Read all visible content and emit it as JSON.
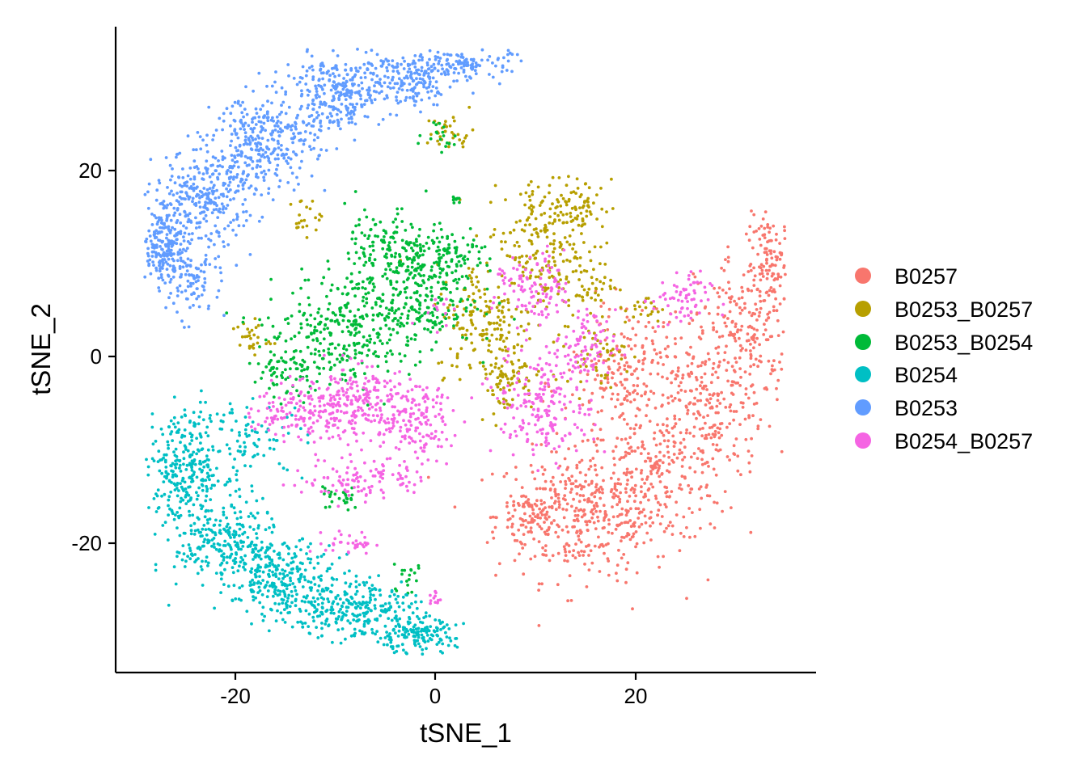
{
  "chart_data": {
    "type": "scatter",
    "xlabel": "tSNE_1",
    "ylabel": "tSNE_2",
    "xlim": [
      -32,
      38
    ],
    "ylim": [
      -34,
      35
    ],
    "x_ticks": [
      -20,
      0,
      20
    ],
    "y_ticks": [
      20,
      0,
      -20
    ],
    "x_tick_labels": [
      "-20",
      "0",
      "20"
    ],
    "y_tick_labels": [
      "20",
      "0",
      "-20"
    ],
    "legend": {
      "position": "right"
    },
    "grid": false,
    "series": [
      {
        "name": "B0257",
        "color": "#F8766D",
        "count": 1400,
        "regions": [
          {
            "cx": 15,
            "cy": -17,
            "sx": 4.5,
            "sy": 3.5,
            "w": 0.28
          },
          {
            "cx": 22,
            "cy": -13,
            "sx": 4,
            "sy": 3.5,
            "w": 0.16
          },
          {
            "cx": 27,
            "cy": -5,
            "sx": 3,
            "sy": 4,
            "w": 0.14
          },
          {
            "cx": 31,
            "cy": 3,
            "sx": 2.5,
            "sy": 4,
            "w": 0.14
          },
          {
            "cx": 33.5,
            "cy": 10,
            "sx": 1.2,
            "sy": 2.5,
            "w": 0.08
          },
          {
            "cx": 20,
            "cy": -3,
            "sx": 3.5,
            "sy": 3,
            "w": 0.12
          },
          {
            "cx": 9.5,
            "cy": -17,
            "sx": 1.5,
            "sy": 1.5,
            "w": 0.05
          },
          {
            "cx": 19,
            "cy": 2,
            "sx": 2,
            "sy": 2,
            "w": 0.03
          }
        ]
      },
      {
        "name": "B0253_B0257",
        "color": "#B79F00",
        "count": 700,
        "regions": [
          {
            "cx": 10,
            "cy": 13,
            "sx": 2.5,
            "sy": 3,
            "w": 0.22
          },
          {
            "cx": 14,
            "cy": 16,
            "sx": 1.8,
            "sy": 1.5,
            "w": 0.1
          },
          {
            "cx": 14,
            "cy": 8,
            "sx": 2,
            "sy": 2,
            "w": 0.12
          },
          {
            "cx": 5,
            "cy": 4,
            "sx": 2.5,
            "sy": 3,
            "w": 0.22
          },
          {
            "cx": 7,
            "cy": -2,
            "sx": 1.5,
            "sy": 2,
            "w": 0.12
          },
          {
            "cx": 16,
            "cy": 0,
            "sx": 1.5,
            "sy": 1.5,
            "w": 0.07
          },
          {
            "cx": 1.5,
            "cy": 24,
            "sx": 1.2,
            "sy": 1,
            "w": 0.05
          },
          {
            "cx": 21,
            "cy": 5,
            "sx": 1,
            "sy": 0.8,
            "w": 0.03
          },
          {
            "cx": -18.5,
            "cy": 2,
            "sx": 1,
            "sy": 1,
            "w": 0.04
          },
          {
            "cx": -13,
            "cy": 15,
            "sx": 0.8,
            "sy": 1,
            "w": 0.03
          }
        ]
      },
      {
        "name": "B0253_B0254",
        "color": "#00BA38",
        "count": 900,
        "regions": [
          {
            "cx": -2,
            "cy": 7,
            "sx": 3,
            "sy": 3,
            "w": 0.3
          },
          {
            "cx": -7,
            "cy": 4,
            "sx": 3,
            "sy": 3,
            "w": 0.2
          },
          {
            "cx": -12,
            "cy": 2,
            "sx": 3,
            "sy": 3,
            "w": 0.16
          },
          {
            "cx": -5,
            "cy": 12,
            "sx": 2,
            "sy": 2,
            "w": 0.1
          },
          {
            "cx": 1.5,
            "cy": 11,
            "sx": 2.5,
            "sy": 1,
            "w": 0.1
          },
          {
            "cx": -15,
            "cy": -2,
            "sx": 2,
            "sy": 1.5,
            "w": 0.06
          },
          {
            "cx": -9.5,
            "cy": -15,
            "sx": 1,
            "sy": 0.8,
            "w": 0.03
          },
          {
            "cx": -3,
            "cy": -24,
            "sx": 1,
            "sy": 0.8,
            "w": 0.02
          },
          {
            "cx": 0.5,
            "cy": 24,
            "sx": 0.8,
            "sy": 1,
            "w": 0.02
          },
          {
            "cx": 2,
            "cy": 17,
            "sx": 0.5,
            "sy": 0.3,
            "w": 0.01
          }
        ]
      },
      {
        "name": "B0254",
        "color": "#00BFC4",
        "count": 1300,
        "regions": [
          {
            "cx": -25,
            "cy": -12,
            "sx": 2,
            "sy": 3,
            "w": 0.22
          },
          {
            "cx": -21,
            "cy": -20,
            "sx": 2.5,
            "sy": 2.5,
            "w": 0.2
          },
          {
            "cx": -15,
            "cy": -24,
            "sx": 2.5,
            "sy": 2,
            "w": 0.2
          },
          {
            "cx": -8,
            "cy": -27,
            "sx": 3,
            "sy": 1.8,
            "w": 0.2
          },
          {
            "cx": -2,
            "cy": -30,
            "sx": 2,
            "sy": 1,
            "w": 0.12
          },
          {
            "cx": -18,
            "cy": -9,
            "sx": 2.5,
            "sy": 2,
            "w": 0.06
          }
        ]
      },
      {
        "name": "B0253",
        "color": "#619CFF",
        "count": 1500,
        "regions": [
          {
            "cx": -27,
            "cy": 12,
            "sx": 1.5,
            "sy": 2,
            "w": 0.15
          },
          {
            "cx": -23,
            "cy": 17,
            "sx": 2.5,
            "sy": 2.5,
            "w": 0.2
          },
          {
            "cx": -17,
            "cy": 23,
            "sx": 2.5,
            "sy": 2.5,
            "w": 0.2
          },
          {
            "cx": -10,
            "cy": 28,
            "sx": 2.5,
            "sy": 2,
            "w": 0.18
          },
          {
            "cx": -3,
            "cy": 30,
            "sx": 2.5,
            "sy": 1.5,
            "w": 0.14
          },
          {
            "cx": 3.5,
            "cy": 31.5,
            "sx": 2,
            "sy": 0.8,
            "w": 0.07
          },
          {
            "cx": -24,
            "cy": 8,
            "sx": 1.5,
            "sy": 2,
            "w": 0.06
          }
        ]
      },
      {
        "name": "B0254_B0257",
        "color": "#F564E3",
        "count": 1100,
        "regions": [
          {
            "cx": -8,
            "cy": -5,
            "sx": 3,
            "sy": 2,
            "w": 0.22
          },
          {
            "cx": -2,
            "cy": -7,
            "sx": 2,
            "sy": 2,
            "w": 0.12
          },
          {
            "cx": -14,
            "cy": -6,
            "sx": 2,
            "sy": 1.5,
            "w": 0.1
          },
          {
            "cx": -7,
            "cy": -13,
            "sx": 3,
            "sy": 1.2,
            "w": 0.1
          },
          {
            "cx": 11,
            "cy": -5,
            "sx": 2.5,
            "sy": 3,
            "w": 0.18
          },
          {
            "cx": 10,
            "cy": 7,
            "sx": 2,
            "sy": 2,
            "w": 0.1
          },
          {
            "cx": 24.5,
            "cy": 6,
            "sx": 1.5,
            "sy": 1.5,
            "w": 0.06
          },
          {
            "cx": 15,
            "cy": 1,
            "sx": 1.5,
            "sy": 2,
            "w": 0.07
          },
          {
            "cx": -8.5,
            "cy": -20,
            "sx": 1.2,
            "sy": 0.6,
            "w": 0.03
          },
          {
            "cx": 0,
            "cy": -26,
            "sx": 0.3,
            "sy": 0.5,
            "w": 0.01
          },
          {
            "cx": 0.5,
            "cy": 5,
            "sx": 0.8,
            "sy": 1,
            "w": 0.01
          }
        ]
      }
    ]
  }
}
